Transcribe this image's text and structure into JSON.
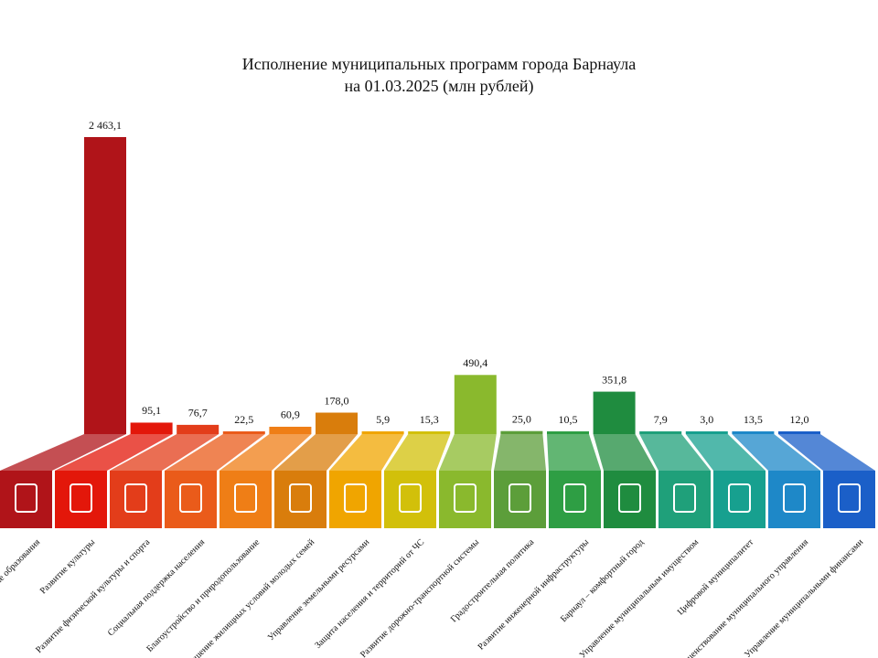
{
  "chart_data": {
    "type": "bar",
    "title": "Исполнение  муниципальных  программ города Барнаула",
    "subtitle": "на 01.03.2025 (млн рублей)",
    "categories": [
      "Развитие образования",
      "Развитие культуры",
      "Развитие физической культуры и спорта",
      "Социальная поддержка населения",
      "Благоустройство и природопользование",
      "Улучшение жилищных условий молодых семей",
      "Управление земельными ресурсами",
      "Защита населения и территорий от ЧС",
      "Развитие дорожно-транспортной системы",
      "Градостроительная политика",
      "Развитие инженерной инфраструктуры",
      "Барнаул – комфортный город",
      "Управление муниципальным имуществом",
      "Цифровой муниципалитет",
      "Совершенствование муниципального управления",
      "Управление муниципальными финансами"
    ],
    "values": [
      2463.1,
      95.1,
      76.7,
      22.5,
      60.9,
      178.0,
      5.9,
      15.3,
      490.4,
      25.0,
      10.5,
      351.8,
      7.9,
      3.0,
      13.5,
      12.0
    ],
    "value_labels": [
      "2 463,1",
      "95,1",
      "76,7",
      "22,5",
      "60,9",
      "178,0",
      "5,9",
      "15,3",
      "490,4",
      "25,0",
      "10,5",
      "351,8",
      "7,9",
      "3,0",
      "13,5",
      "12,0"
    ],
    "colors": [
      "#b01419",
      "#e3170a",
      "#e33d1a",
      "#ea5b1a",
      "#ef7e16",
      "#d97d0c",
      "#f0a500",
      "#d2c00a",
      "#8ab92d",
      "#5c9e3a",
      "#2e9e44",
      "#1f8c3f",
      "#1fa07a",
      "#17a08f",
      "#1e88c8",
      "#1b5fc8"
    ]
  }
}
